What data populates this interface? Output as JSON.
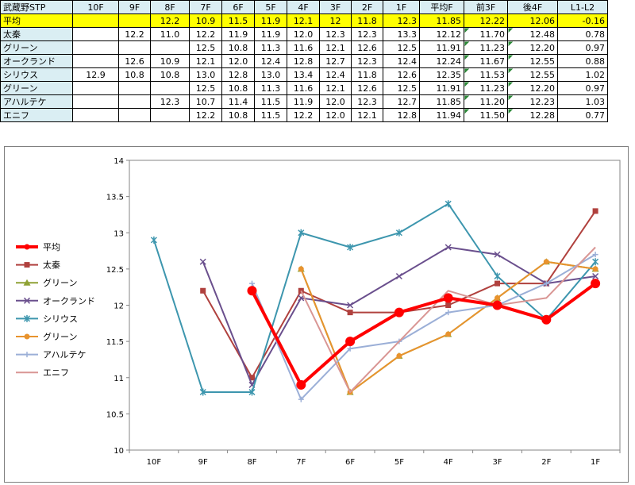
{
  "table": {
    "headers": [
      "武蔵野STP",
      "10F",
      "9F",
      "8F",
      "7F",
      "6F",
      "5F",
      "4F",
      "3F",
      "2F",
      "1F",
      "平均F",
      "前3F",
      "後4F",
      "L1-L2"
    ],
    "rows": [
      {
        "name": "平均",
        "cells": [
          "",
          "",
          "12.2",
          "10.9",
          "11.5",
          "11.9",
          "12.1",
          "12",
          "11.8",
          "12.3",
          "11.85",
          "12.22",
          "12.06",
          "-0.16"
        ]
      },
      {
        "name": "太秦",
        "cells": [
          "",
          "12.2",
          "11.0",
          "12.2",
          "11.9",
          "11.9",
          "12.0",
          "12.3",
          "12.3",
          "13.3",
          "12.12",
          "11.70",
          "12.48",
          "0.78"
        ]
      },
      {
        "name": "グリーン",
        "cells": [
          "",
          "",
          "",
          "12.5",
          "10.8",
          "11.3",
          "11.6",
          "12.1",
          "12.6",
          "12.5",
          "11.91",
          "11.23",
          "12.20",
          "0.97"
        ]
      },
      {
        "name": "オークランド",
        "cells": [
          "",
          "12.6",
          "10.9",
          "12.1",
          "12.0",
          "12.4",
          "12.8",
          "12.7",
          "12.3",
          "12.4",
          "12.24",
          "11.67",
          "12.55",
          "0.88"
        ]
      },
      {
        "name": "シリウス",
        "cells": [
          "12.9",
          "10.8",
          "10.8",
          "13.0",
          "12.8",
          "13.0",
          "13.4",
          "12.4",
          "11.8",
          "12.6",
          "12.35",
          "11.53",
          "12.55",
          "1.02"
        ]
      },
      {
        "name": "グリーン",
        "cells": [
          "",
          "",
          "",
          "12.5",
          "10.8",
          "11.3",
          "11.6",
          "12.1",
          "12.6",
          "12.5",
          "11.91",
          "11.23",
          "12.20",
          "0.97"
        ]
      },
      {
        "name": "アハルテケ",
        "cells": [
          "",
          "",
          "12.3",
          "10.7",
          "11.4",
          "11.5",
          "11.9",
          "12.0",
          "12.3",
          "12.7",
          "11.85",
          "11.20",
          "12.23",
          "1.03"
        ]
      },
      {
        "name": "エニフ",
        "cells": [
          "",
          "",
          "",
          "12.2",
          "10.8",
          "11.5",
          "12.2",
          "12.0",
          "12.1",
          "12.8",
          "11.94",
          "11.50",
          "12.28",
          "0.77"
        ]
      }
    ]
  },
  "chart_data": {
    "type": "line",
    "title": "",
    "xlabel": "",
    "ylabel": "",
    "categories": [
      "10F",
      "9F",
      "8F",
      "7F",
      "6F",
      "5F",
      "4F",
      "3F",
      "2F",
      "1F"
    ],
    "ylim": [
      10,
      14
    ],
    "yticks": [
      "10",
      "10.5",
      "11",
      "11.5",
      "12",
      "12.5",
      "13",
      "13.5",
      "14"
    ],
    "grid": false,
    "legend_position": "left",
    "series": [
      {
        "name": "平均",
        "color": "#ff0000",
        "marker": "circle",
        "values": [
          null,
          null,
          12.2,
          10.9,
          11.5,
          11.9,
          12.1,
          12,
          11.8,
          12.3
        ]
      },
      {
        "name": "太秦",
        "color": "#b0413e",
        "marker": "square",
        "values": [
          null,
          12.2,
          11.0,
          12.2,
          11.9,
          11.9,
          12.0,
          12.3,
          12.3,
          13.3
        ]
      },
      {
        "name": "グリーン",
        "color": "#8fa235",
        "marker": "triangle",
        "values": [
          null,
          null,
          null,
          12.5,
          10.8,
          11.3,
          11.6,
          12.1,
          12.6,
          12.5
        ]
      },
      {
        "name": "オークランド",
        "color": "#6a4f8d",
        "marker": "x",
        "values": [
          null,
          12.6,
          10.9,
          12.1,
          12.0,
          12.4,
          12.8,
          12.7,
          12.3,
          12.4
        ]
      },
      {
        "name": "シリウス",
        "color": "#3d96ae",
        "marker": "star",
        "values": [
          12.9,
          10.8,
          10.8,
          13.0,
          12.8,
          13.0,
          13.4,
          12.4,
          11.8,
          12.6
        ]
      },
      {
        "name": "グリーン",
        "color": "#e8932e",
        "marker": "circle",
        "values": [
          null,
          null,
          null,
          12.5,
          10.8,
          11.3,
          11.6,
          12.1,
          12.6,
          12.5
        ]
      },
      {
        "name": "アハルテケ",
        "color": "#9bafd7",
        "marker": "plus",
        "values": [
          null,
          null,
          12.3,
          10.7,
          11.4,
          11.5,
          11.9,
          12.0,
          12.3,
          12.7
        ]
      },
      {
        "name": "エニフ",
        "color": "#d99694",
        "marker": "none",
        "values": [
          null,
          null,
          null,
          12.2,
          10.8,
          11.5,
          12.2,
          12.0,
          12.1,
          12.8
        ]
      }
    ]
  }
}
